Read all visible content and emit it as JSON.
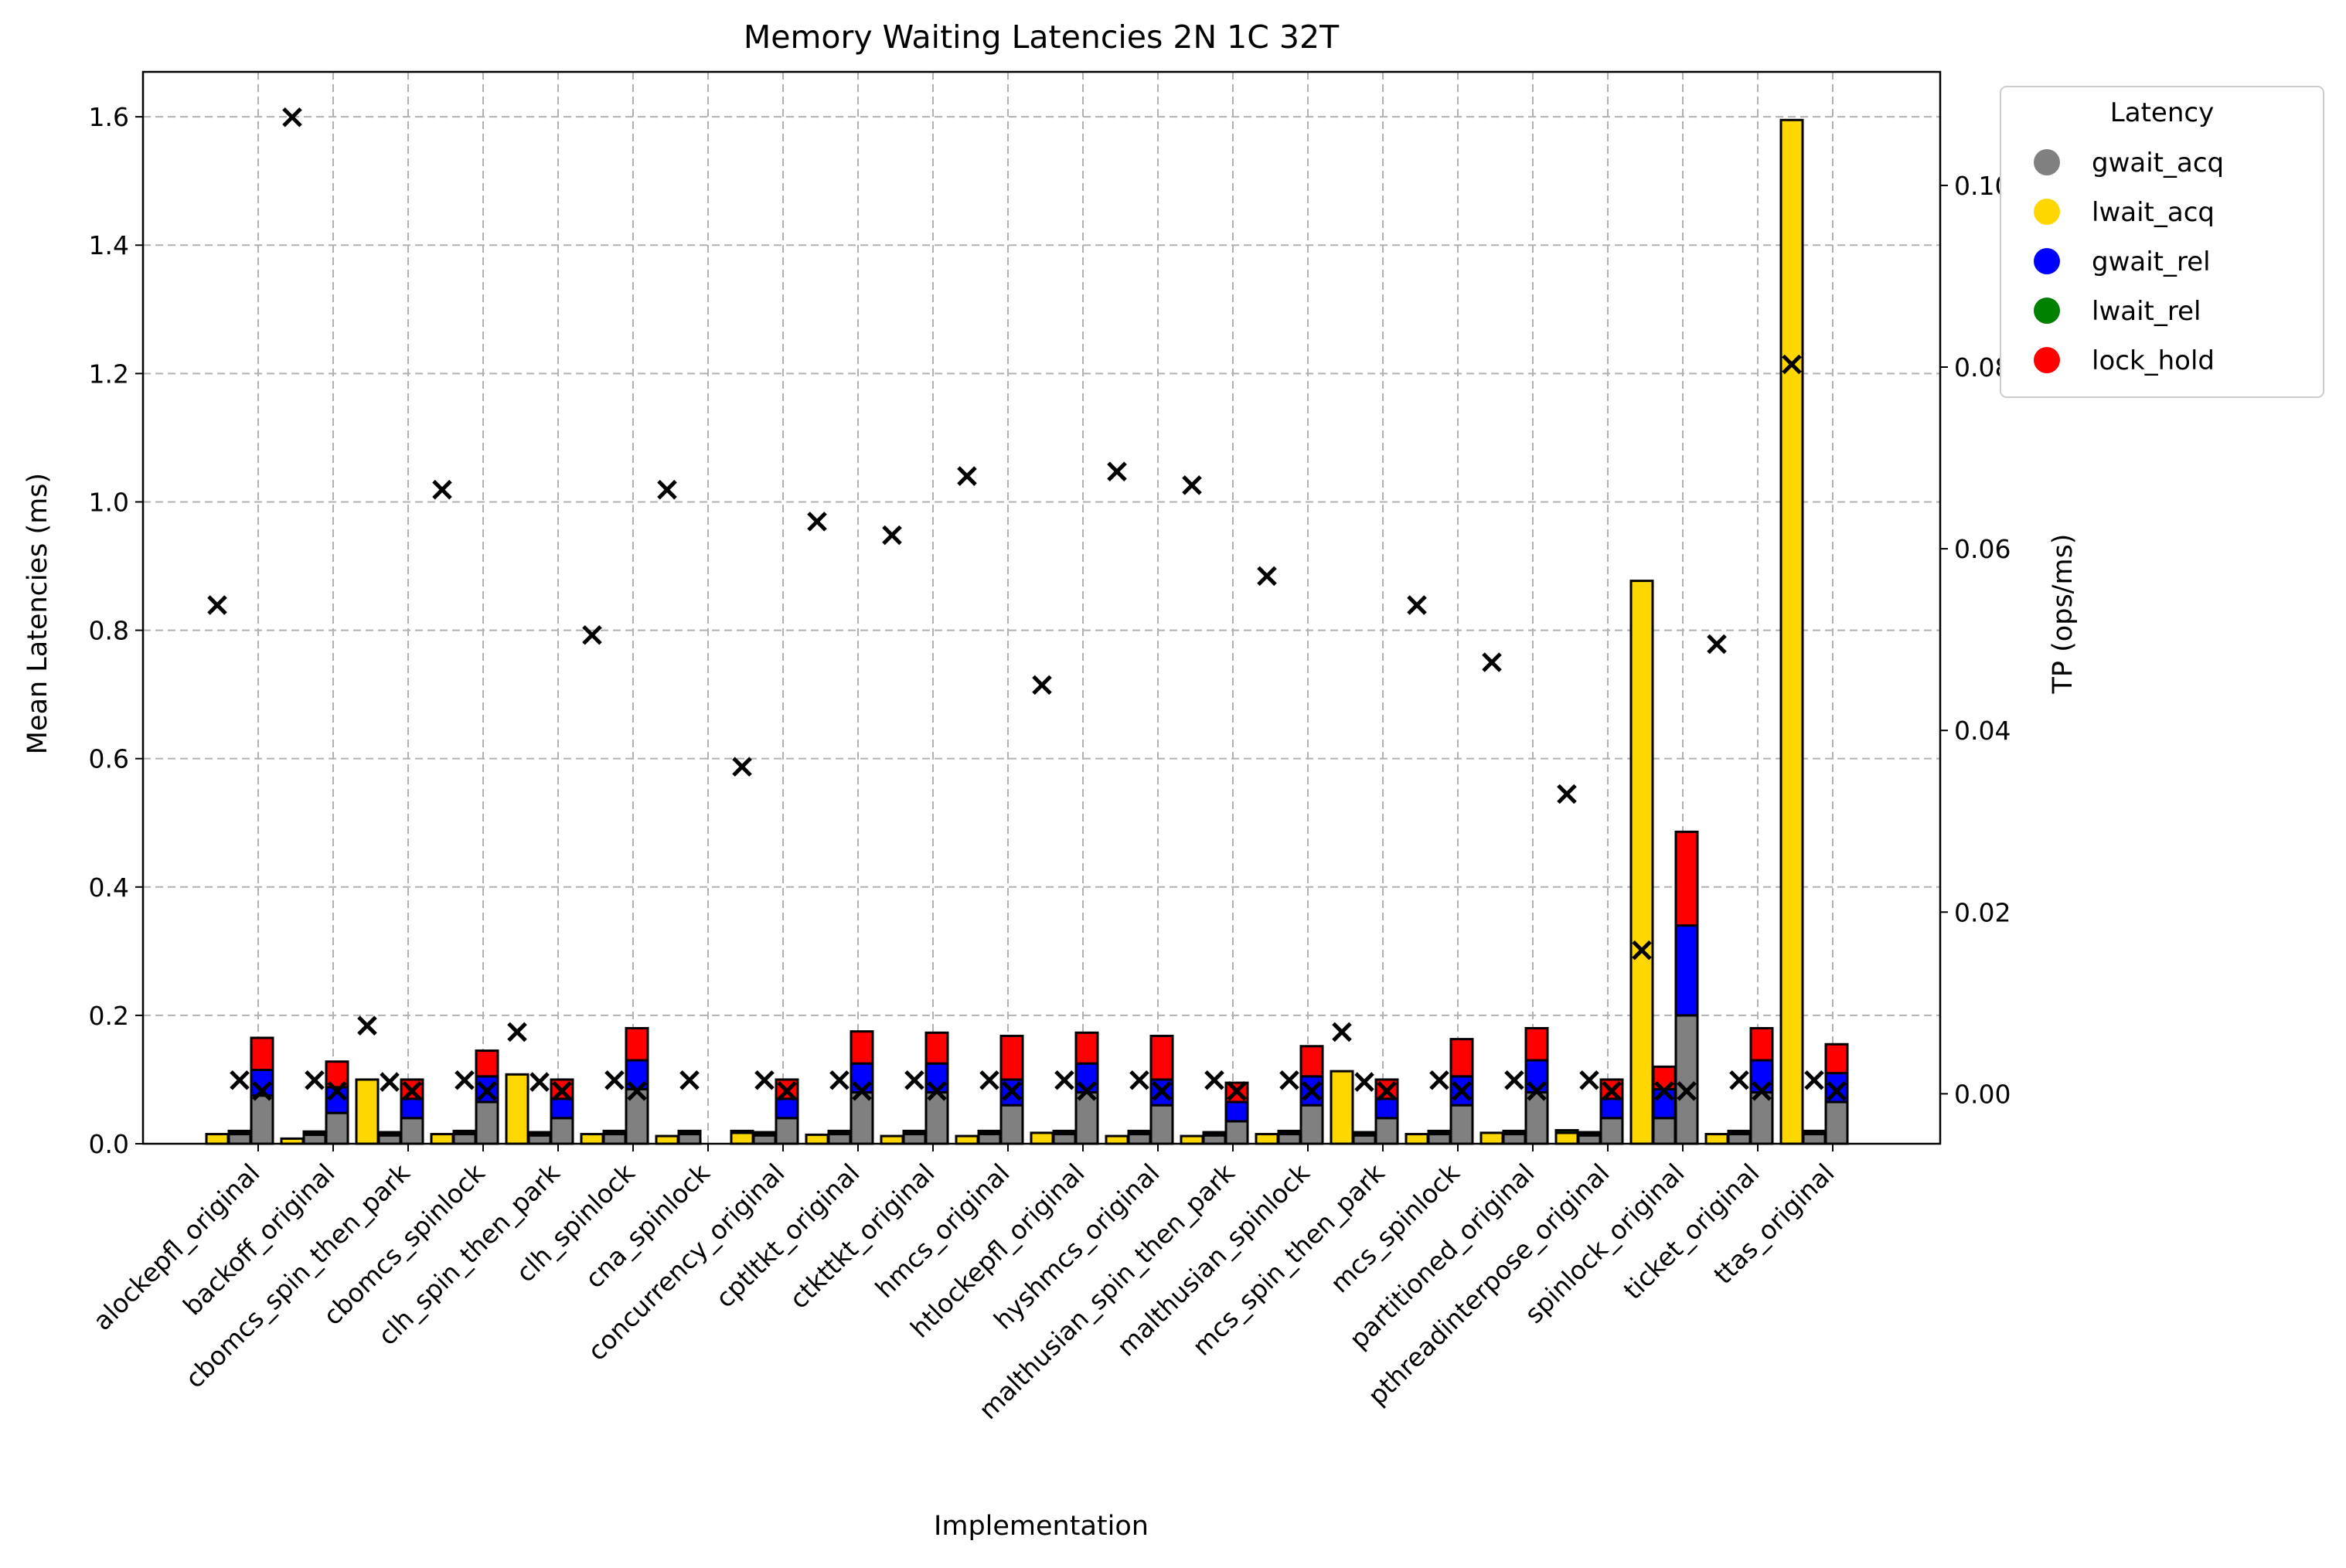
{
  "chart_data": {
    "type": "bar",
    "title": "Memory Waiting Latencies 2N 1C 32T",
    "xlabel": "Implementation",
    "ylabel": "Mean Latencies (ms)",
    "y2label": "TP (ops/ms)",
    "ylim": [
      0,
      1.67
    ],
    "y2lim": [
      -0.0055,
      0.1125
    ],
    "yticks": [
      "0.0",
      "0.2",
      "0.4",
      "0.6",
      "0.8",
      "1.0",
      "1.2",
      "1.4",
      "1.6"
    ],
    "y2ticks": [
      "0.00",
      "0.02",
      "0.04",
      "0.06",
      "0.08",
      "0.10"
    ],
    "grid": true,
    "legend": {
      "title": "Latency",
      "placement": "outside-top-right",
      "entries": [
        {
          "name": "gwait_acq",
          "color": "#808080"
        },
        {
          "name": "lwait_acq",
          "color": "#FFD700"
        },
        {
          "name": "gwait_rel",
          "color": "#0000FF"
        },
        {
          "name": "lwait_rel",
          "color": "#008000"
        },
        {
          "name": "lock_hold",
          "color": "#FF0000"
        }
      ]
    },
    "categories": [
      "alockepfl_original",
      "backoff_original",
      "cbomcs_spin_then_park",
      "cbomcs_spinlock",
      "clh_spin_then_park",
      "clh_spinlock",
      "cna_spinlock",
      "concurrency_original",
      "cptltkt_original",
      "ctkttkt_original",
      "hmcs_original",
      "htlockepfl_original",
      "hyshmcs_original",
      "malthusian_spin_then_park",
      "malthusian_spinlock",
      "mcs_spin_then_park",
      "mcs_spinlock",
      "partitioned_original",
      "pthreadinterpose_original",
      "spinlock_original",
      "ticket_original",
      "ttas_original"
    ],
    "bars": [
      {
        "lwait_acq": 0.015,
        "lwait_rel": 0.0,
        "s2_gwait_acq": 0.015,
        "s2_gwait_rel": 0.003,
        "s2_lock_hold": 0.002,
        "s3_gwait_acq": 0.075,
        "s3_gwait_rel": 0.04,
        "s3_lock_hold": 0.05,
        "tp1": 0.0538,
        "tp2": 0.0015,
        "tp3": 0.0003
      },
      {
        "lwait_acq": 0.008,
        "lwait_rel": 0.0,
        "s2_gwait_acq": 0.014,
        "s2_gwait_rel": 0.003,
        "s2_lock_hold": 0.002,
        "s3_gwait_acq": 0.048,
        "s3_gwait_rel": 0.04,
        "s3_lock_hold": 0.04,
        "tp1": 0.1075,
        "tp2": 0.0015,
        "tp3": 0.0003
      },
      {
        "lwait_acq": 0.1,
        "lwait_rel": 0.0,
        "s2_gwait_acq": 0.013,
        "s2_gwait_rel": 0.003,
        "s2_lock_hold": 0.002,
        "s3_gwait_acq": 0.04,
        "s3_gwait_rel": 0.03,
        "s3_lock_hold": 0.03,
        "tp1": 0.0075,
        "tp2": 0.0013,
        "tp3": 0.0003
      },
      {
        "lwait_acq": 0.015,
        "lwait_rel": 0.0,
        "s2_gwait_acq": 0.015,
        "s2_gwait_rel": 0.003,
        "s2_lock_hold": 0.002,
        "s3_gwait_acq": 0.065,
        "s3_gwait_rel": 0.04,
        "s3_lock_hold": 0.04,
        "tp1": 0.0665,
        "tp2": 0.0015,
        "tp3": 0.0003
      },
      {
        "lwait_acq": 0.108,
        "lwait_rel": 0.0,
        "s2_gwait_acq": 0.013,
        "s2_gwait_rel": 0.003,
        "s2_lock_hold": 0.002,
        "s3_gwait_acq": 0.04,
        "s3_gwait_rel": 0.03,
        "s3_lock_hold": 0.03,
        "tp1": 0.0068,
        "tp2": 0.0013,
        "tp3": 0.0003
      },
      {
        "lwait_acq": 0.015,
        "lwait_rel": 0.0,
        "s2_gwait_acq": 0.015,
        "s2_gwait_rel": 0.003,
        "s2_lock_hold": 0.002,
        "s3_gwait_acq": 0.085,
        "s3_gwait_rel": 0.045,
        "s3_lock_hold": 0.05,
        "tp1": 0.0505,
        "tp2": 0.0015,
        "tp3": 0.0003
      },
      {
        "lwait_acq": 0.012,
        "lwait_rel": 0.0,
        "s2_gwait_acq": 0.015,
        "s2_gwait_rel": 0.003,
        "s2_lock_hold": 0.002,
        "s3_gwait_acq": 0.0,
        "s3_gwait_rel": 0.0,
        "s3_lock_hold": 0.0,
        "tp1": 0.0665,
        "tp2": 0.0015,
        "tp3": null
      },
      {
        "lwait_acq": 0.017,
        "lwait_rel": 0.003,
        "s2_gwait_acq": 0.013,
        "s2_gwait_rel": 0.003,
        "s2_lock_hold": 0.002,
        "s3_gwait_acq": 0.04,
        "s3_gwait_rel": 0.03,
        "s3_lock_hold": 0.03,
        "tp1": 0.036,
        "tp2": 0.0015,
        "tp3": 0.0003
      },
      {
        "lwait_acq": 0.014,
        "lwait_rel": 0.0,
        "s2_gwait_acq": 0.015,
        "s2_gwait_rel": 0.003,
        "s2_lock_hold": 0.002,
        "s3_gwait_acq": 0.08,
        "s3_gwait_rel": 0.045,
        "s3_lock_hold": 0.05,
        "tp1": 0.063,
        "tp2": 0.0015,
        "tp3": 0.0003
      },
      {
        "lwait_acq": 0.012,
        "lwait_rel": 0.0,
        "s2_gwait_acq": 0.015,
        "s2_gwait_rel": 0.003,
        "s2_lock_hold": 0.002,
        "s3_gwait_acq": 0.08,
        "s3_gwait_rel": 0.045,
        "s3_lock_hold": 0.048,
        "tp1": 0.0615,
        "tp2": 0.0015,
        "tp3": 0.0003
      },
      {
        "lwait_acq": 0.012,
        "lwait_rel": 0.0,
        "s2_gwait_acq": 0.015,
        "s2_gwait_rel": 0.003,
        "s2_lock_hold": 0.002,
        "s3_gwait_acq": 0.06,
        "s3_gwait_rel": 0.04,
        "s3_lock_hold": 0.068,
        "tp1": 0.068,
        "tp2": 0.0015,
        "tp3": 0.0003
      },
      {
        "lwait_acq": 0.017,
        "lwait_rel": 0.0,
        "s2_gwait_acq": 0.015,
        "s2_gwait_rel": 0.003,
        "s2_lock_hold": 0.002,
        "s3_gwait_acq": 0.08,
        "s3_gwait_rel": 0.045,
        "s3_lock_hold": 0.048,
        "tp1": 0.045,
        "tp2": 0.0015,
        "tp3": 0.0003
      },
      {
        "lwait_acq": 0.012,
        "lwait_rel": 0.0,
        "s2_gwait_acq": 0.015,
        "s2_gwait_rel": 0.003,
        "s2_lock_hold": 0.002,
        "s3_gwait_acq": 0.06,
        "s3_gwait_rel": 0.04,
        "s3_lock_hold": 0.068,
        "tp1": 0.0685,
        "tp2": 0.0015,
        "tp3": 0.0003
      },
      {
        "lwait_acq": 0.012,
        "lwait_rel": 0.0,
        "s2_gwait_acq": 0.013,
        "s2_gwait_rel": 0.003,
        "s2_lock_hold": 0.002,
        "s3_gwait_acq": 0.035,
        "s3_gwait_rel": 0.03,
        "s3_lock_hold": 0.03,
        "tp1": 0.067,
        "tp2": 0.0015,
        "tp3": 0.0003
      },
      {
        "lwait_acq": 0.015,
        "lwait_rel": 0.0,
        "s2_gwait_acq": 0.015,
        "s2_gwait_rel": 0.003,
        "s2_lock_hold": 0.002,
        "s3_gwait_acq": 0.06,
        "s3_gwait_rel": 0.045,
        "s3_lock_hold": 0.047,
        "tp1": 0.057,
        "tp2": 0.0015,
        "tp3": 0.0003
      },
      {
        "lwait_acq": 0.113,
        "lwait_rel": 0.0,
        "s2_gwait_acq": 0.013,
        "s2_gwait_rel": 0.003,
        "s2_lock_hold": 0.002,
        "s3_gwait_acq": 0.04,
        "s3_gwait_rel": 0.03,
        "s3_lock_hold": 0.03,
        "tp1": 0.0068,
        "tp2": 0.0013,
        "tp3": 0.0003
      },
      {
        "lwait_acq": 0.015,
        "lwait_rel": 0.0,
        "s2_gwait_acq": 0.015,
        "s2_gwait_rel": 0.003,
        "s2_lock_hold": 0.002,
        "s3_gwait_acq": 0.06,
        "s3_gwait_rel": 0.045,
        "s3_lock_hold": 0.058,
        "tp1": 0.0538,
        "tp2": 0.0015,
        "tp3": 0.0003
      },
      {
        "lwait_acq": 0.017,
        "lwait_rel": 0.0,
        "s2_gwait_acq": 0.015,
        "s2_gwait_rel": 0.003,
        "s2_lock_hold": 0.002,
        "s3_gwait_acq": 0.08,
        "s3_gwait_rel": 0.05,
        "s3_lock_hold": 0.05,
        "tp1": 0.0475,
        "tp2": 0.0015,
        "tp3": 0.0003
      },
      {
        "lwait_acq": 0.017,
        "lwait_rel": 0.004,
        "s2_gwait_acq": 0.013,
        "s2_gwait_rel": 0.003,
        "s2_lock_hold": 0.002,
        "s3_gwait_acq": 0.04,
        "s3_gwait_rel": 0.03,
        "s3_lock_hold": 0.03,
        "tp1": 0.033,
        "tp2": 0.0015,
        "tp3": 0.0003
      },
      {
        "lwait_acq": 0.877,
        "lwait_rel": 0.0,
        "s2_gwait_acq": 0.04,
        "s2_gwait_rel": 0.045,
        "s2_lock_hold": 0.035,
        "s3_gwait_acq": 0.2,
        "s3_gwait_rel": 0.14,
        "s3_lock_hold": 0.146,
        "tp1": 0.0158,
        "tp2": 0.0003,
        "tp3": 0.0003
      },
      {
        "lwait_acq": 0.015,
        "lwait_rel": 0.0,
        "s2_gwait_acq": 0.015,
        "s2_gwait_rel": 0.003,
        "s2_lock_hold": 0.002,
        "s3_gwait_acq": 0.08,
        "s3_gwait_rel": 0.05,
        "s3_lock_hold": 0.05,
        "tp1": 0.0495,
        "tp2": 0.0015,
        "tp3": 0.0003
      },
      {
        "lwait_acq": 1.595,
        "lwait_rel": 0.0,
        "s2_gwait_acq": 0.015,
        "s2_gwait_rel": 0.003,
        "s2_lock_hold": 0.002,
        "s3_gwait_acq": 0.065,
        "s3_gwait_rel": 0.045,
        "s3_lock_hold": 0.045,
        "tp1": 0.0803,
        "tp2": 0.0015,
        "tp3": 0.0003
      }
    ]
  }
}
